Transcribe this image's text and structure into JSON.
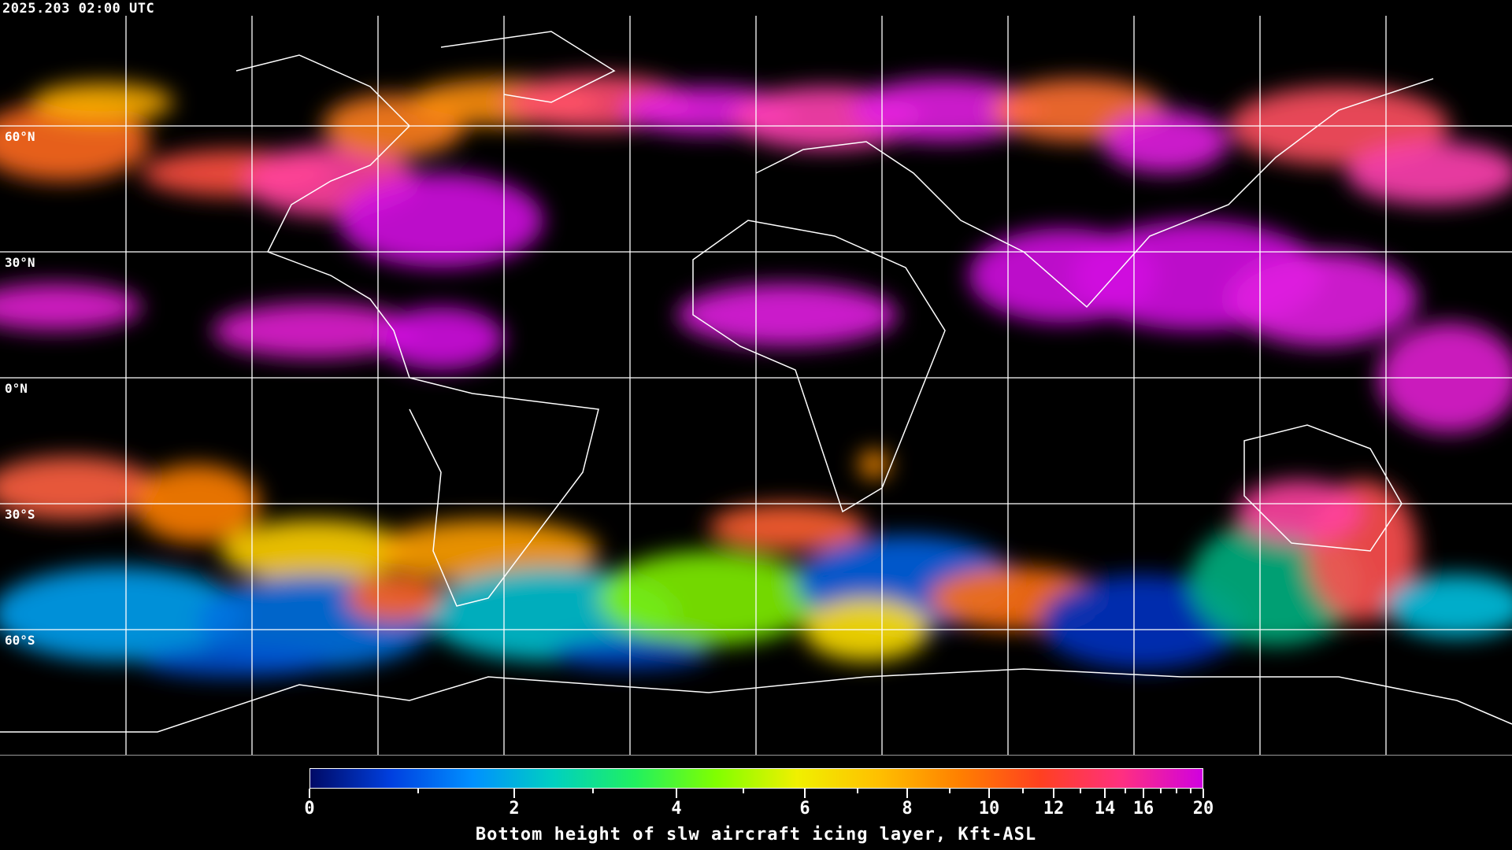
{
  "header": {
    "timestamp": "2025.203 02:00 UTC"
  },
  "map": {
    "projection": "equirectangular",
    "gridline_color": "#ffffff",
    "coastline_color": "#ffffff",
    "background": "#000000",
    "latitude_labels": [
      "60°N",
      "30°N",
      "0°N",
      "30°S",
      "60°S"
    ]
  },
  "colorbar": {
    "title": "Bottom height of slw aircraft icing layer, Kft-ASL",
    "tick_labels": [
      "0",
      "2",
      "4",
      "6",
      "8",
      "10",
      "12",
      "14",
      "16",
      "20"
    ],
    "colors": [
      "#000a66",
      "#0040e0",
      "#0090ff",
      "#00d0c0",
      "#20f060",
      "#80ff00",
      "#f0f000",
      "#ffc000",
      "#ff8000",
      "#ff4020",
      "#ff3080",
      "#d000e0"
    ]
  }
}
